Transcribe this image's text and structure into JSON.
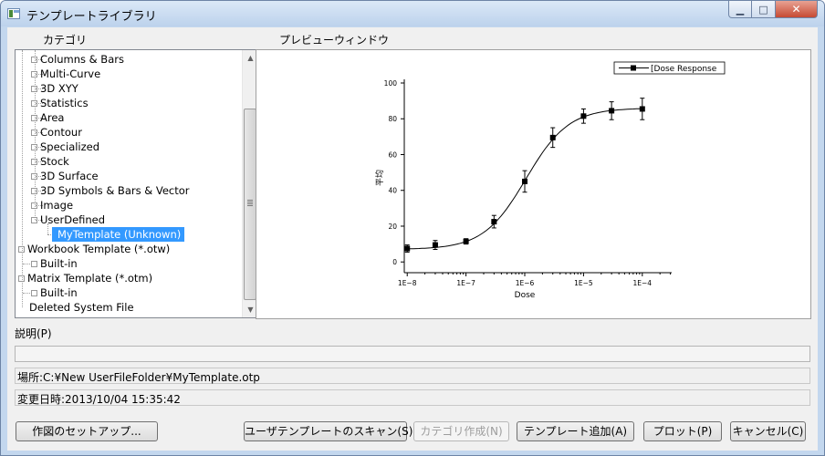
{
  "window": {
    "title": "テンプレートライブラリ"
  },
  "labels": {
    "category": "カテゴリ",
    "preview": "プレビューウィンドウ",
    "description": "説明(P)",
    "location": "場所:C:¥New UserFileFolder¥MyTemplate.otp",
    "modified": "変更日時:2013/10/04 15:35:42"
  },
  "tree": {
    "items": [
      {
        "label": "Columns & Bars",
        "level": 2
      },
      {
        "label": "Multi-Curve",
        "level": 2
      },
      {
        "label": "3D XYY",
        "level": 2
      },
      {
        "label": "Statistics",
        "level": 2
      },
      {
        "label": "Area",
        "level": 2
      },
      {
        "label": "Contour",
        "level": 2
      },
      {
        "label": "Specialized",
        "level": 2
      },
      {
        "label": "Stock",
        "level": 2
      },
      {
        "label": "3D Surface",
        "level": 2
      },
      {
        "label": "3D Symbols & Bars & Vector",
        "level": 2
      },
      {
        "label": "Image",
        "level": 2
      },
      {
        "label": "UserDefined",
        "level": 2
      },
      {
        "label": "MyTemplate (Unknown)",
        "level": 3,
        "selected": true
      },
      {
        "label": "Workbook Template (*.otw)",
        "level": 1
      },
      {
        "label": "Built-in",
        "level": 2
      },
      {
        "label": "Matrix Template (*.otm)",
        "level": 1
      },
      {
        "label": "Built-in",
        "level": 2
      },
      {
        "label": "Deleted System File",
        "level": 1
      }
    ]
  },
  "chart_data": {
    "type": "scatter",
    "xlabel": "Dose",
    "ylabel": "平均",
    "x_scale": "log",
    "xlim": [
      "1E-8",
      "1E-4"
    ],
    "ylim": [
      0,
      100
    ],
    "y_ticks": [
      0,
      20,
      40,
      60,
      80,
      100
    ],
    "x_ticks": [
      "1E-8",
      "1E-7",
      "1E-6",
      "1E-5",
      "1E-4"
    ],
    "legend": "[Dose Response",
    "legend_position": "top-right",
    "fit_curve": true,
    "series": [
      {
        "x": [
          1e-08,
          3e-08,
          1e-07,
          3e-07,
          1e-06,
          3e-06,
          1e-05,
          3e-05,
          0.0001
        ],
        "values": [
          7.5,
          9.5,
          11.5,
          22.5,
          45,
          69.5,
          81.5,
          84.5,
          85.5
        ],
        "err": [
          2,
          2.5,
          1.5,
          3.5,
          6,
          5.5,
          4,
          5,
          6
        ]
      }
    ]
  },
  "buttons": {
    "setup": "作図のセットアップ...",
    "scan": "ユーザテンプレートのスキャン(S)",
    "create_category": "カテゴリ作成(N)",
    "add_template": "テンプレート追加(A)",
    "plot": "プロット(P)",
    "cancel": "キャンセル(C)"
  },
  "icons": {
    "minimize": "minimize-icon",
    "maximize": "maximize-icon",
    "close": "close-icon"
  }
}
